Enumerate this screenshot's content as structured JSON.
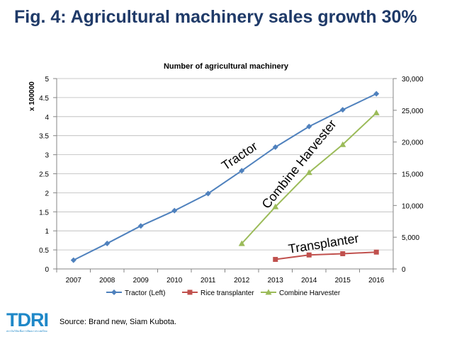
{
  "slide_title": "Fig. 4: Agricultural machinery sales growth 30%",
  "source": "Source: Brand new, Siam Kubota.",
  "logo": {
    "text": "TDRI",
    "subtext": "สถาบันวิจัยเพื่อการพัฒนาประเทศไทย",
    "color": "#1f88c8"
  },
  "chart_data": {
    "type": "line",
    "title": "Number of agricultural machinery",
    "ylabel_left": "x 100000",
    "x": [
      "2007",
      "2008",
      "2009",
      "2010",
      "2011",
      "2012",
      "2013",
      "2014",
      "2015",
      "2016"
    ],
    "y_left_range": [
      0,
      5
    ],
    "y_left_ticks": [
      "0",
      "0.5",
      "1",
      "1.5",
      "2",
      "2.5",
      "3",
      "3.5",
      "4",
      "4.5",
      "5"
    ],
    "y_right_range": [
      0,
      30000
    ],
    "y_right_ticks": [
      "0",
      "5,000",
      "10,000",
      "15,000",
      "20,000",
      "25,000",
      "30,000"
    ],
    "grid": true,
    "legend_position": "bottom",
    "series": [
      {
        "name": "Tractor (Left)",
        "axis": "left",
        "color": "#4f81bd",
        "marker": "diamond",
        "values": [
          0.23,
          0.67,
          1.13,
          1.53,
          1.98,
          2.58,
          3.2,
          3.74,
          4.18,
          4.6
        ]
      },
      {
        "name": "Rice transplanter",
        "axis": "right",
        "color": "#c0504d",
        "marker": "square",
        "values": [
          null,
          null,
          null,
          null,
          null,
          null,
          1500,
          2200,
          2400,
          2650
        ]
      },
      {
        "name": "Combine Harvester",
        "axis": "right",
        "color": "#9bbb59",
        "marker": "triangle",
        "values": [
          null,
          null,
          null,
          null,
          null,
          4000,
          9800,
          15200,
          19600,
          24600
        ]
      }
    ],
    "annotations": [
      {
        "text": "Tractor"
      },
      {
        "text": "Combine Harvester"
      },
      {
        "text": "Transplanter"
      }
    ]
  }
}
